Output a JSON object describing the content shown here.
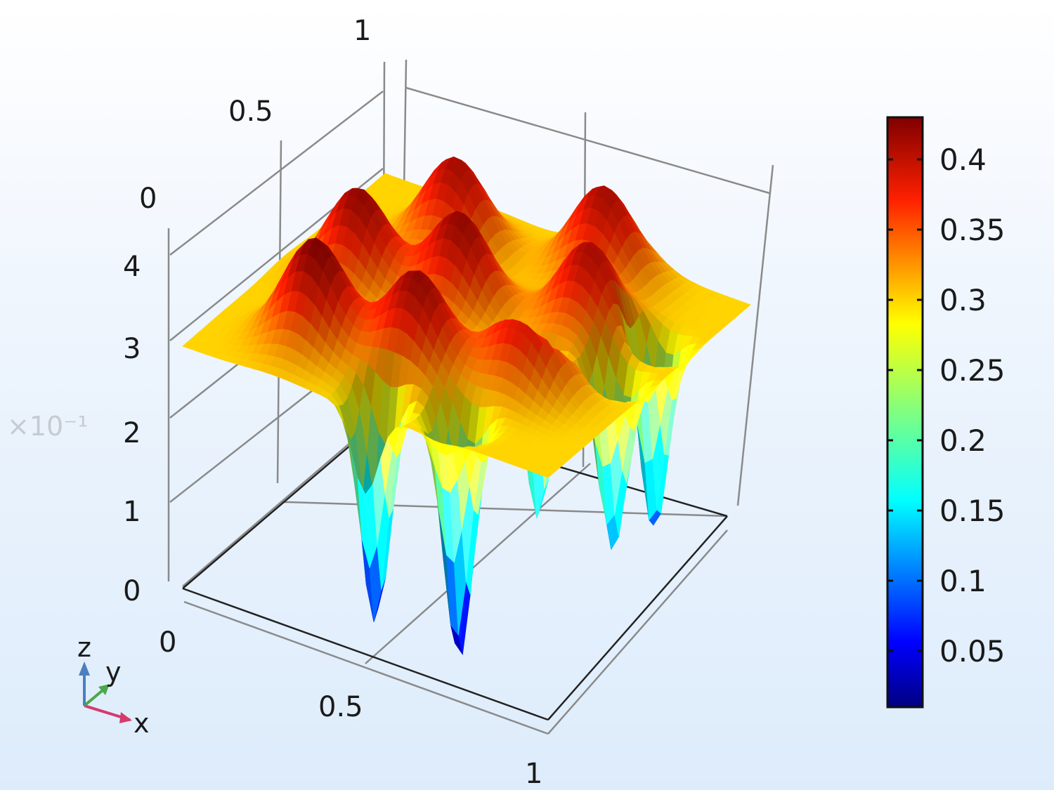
{
  "chart_data": {
    "type": "surface3d",
    "title": "",
    "x_axis": {
      "label": "x",
      "ticks": [
        "0",
        "0.5",
        "1"
      ],
      "range": [
        0,
        1
      ]
    },
    "y_axis": {
      "label": "y",
      "ticks": [
        "0",
        "0.5",
        "1"
      ],
      "range": [
        0,
        1
      ]
    },
    "z_axis": {
      "label": "z",
      "ticks": [
        "0",
        "1",
        "2",
        "3",
        "4"
      ],
      "range": [
        0,
        0.4
      ],
      "multiplier": "×10⁻¹"
    },
    "colorbar": {
      "colormap": "rainbow",
      "range": [
        0.01,
        0.43
      ],
      "ticks": [
        "0.05",
        "0.1",
        "0.15",
        "0.2",
        "0.25",
        "0.3",
        "0.35",
        "0.4"
      ],
      "tick_values": [
        0.05,
        0.1,
        0.15,
        0.2,
        0.25,
        0.3,
        0.35,
        0.4
      ]
    },
    "surface": {
      "base_level": 0.3,
      "features": [
        {
          "type": "peak",
          "x": 0.25,
          "y": 0.2,
          "z": 0.43
        },
        {
          "type": "peak",
          "x": 0.2,
          "y": 0.5,
          "z": 0.42
        },
        {
          "type": "peak",
          "x": 0.5,
          "y": 0.25,
          "z": 0.42
        },
        {
          "type": "peak",
          "x": 0.45,
          "y": 0.55,
          "z": 0.42
        },
        {
          "type": "peak",
          "x": 0.3,
          "y": 0.8,
          "z": 0.41
        },
        {
          "type": "peak",
          "x": 0.75,
          "y": 0.35,
          "z": 0.41
        },
        {
          "type": "peak",
          "x": 0.75,
          "y": 0.65,
          "z": 0.41
        },
        {
          "type": "peak",
          "x": 0.65,
          "y": 0.9,
          "z": 0.41
        },
        {
          "type": "well",
          "x": 0.5,
          "y": 0.05,
          "z": 0.02
        },
        {
          "type": "well",
          "x": 0.7,
          "y": 0.1,
          "z": 0.0
        },
        {
          "type": "well",
          "x": 0.75,
          "y": 0.4,
          "z": 0.03
        },
        {
          "type": "well",
          "x": 0.9,
          "y": 0.5,
          "z": 0.08
        },
        {
          "type": "well",
          "x": 0.9,
          "y": 0.7,
          "z": 0.05
        }
      ]
    }
  },
  "colors": {
    "axis_lines": "#8a8a8a",
    "axis_front": "#222222",
    "triad_x": "#d63a6e",
    "triad_y": "#4aa84a",
    "triad_z": "#4a7fc0"
  }
}
